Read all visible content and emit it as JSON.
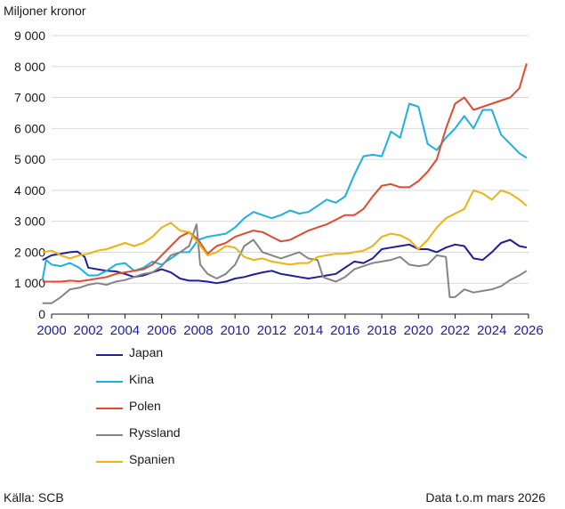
{
  "chart_data": {
    "type": "line",
    "title": "",
    "ylabel": "Miljoner kronor",
    "xlabel": "",
    "ylim": [
      0,
      9000
    ],
    "xlim": [
      2000,
      2026
    ],
    "y_ticks": [
      0,
      1000,
      2000,
      3000,
      4000,
      5000,
      6000,
      7000,
      8000,
      9000
    ],
    "y_tick_labels": [
      "0",
      "1 000",
      "2 000",
      "3 000",
      "4 000",
      "5 000",
      "6 000",
      "7 000",
      "8 000",
      "9 000"
    ],
    "x_ticks": [
      2000,
      2002,
      2004,
      2006,
      2008,
      2010,
      2012,
      2014,
      2016,
      2018,
      2020,
      2022,
      2024,
      2026
    ],
    "x_tick_labels": [
      "2000",
      "2002",
      "2004",
      "2006",
      "2008",
      "2010",
      "2012",
      "2014",
      "2016",
      "2018",
      "2020",
      "2022",
      "2024",
      "2026"
    ],
    "grid": "horizontal",
    "legend_position": "bottom-left",
    "series": [
      {
        "name": "Japan",
        "color": "#1e1e9e",
        "points": [
          [
            1999.5,
            1750
          ],
          [
            2000,
            1900
          ],
          [
            2000.5,
            1950
          ],
          [
            2001,
            2000
          ],
          [
            2001.4,
            2020
          ],
          [
            2001.8,
            1850
          ],
          [
            2002,
            1500
          ],
          [
            2002.5,
            1450
          ],
          [
            2003,
            1400
          ],
          [
            2003.5,
            1380
          ],
          [
            2004,
            1300
          ],
          [
            2004.5,
            1200
          ],
          [
            2005,
            1250
          ],
          [
            2005.5,
            1350
          ],
          [
            2006,
            1450
          ],
          [
            2006.5,
            1350
          ],
          [
            2007,
            1150
          ],
          [
            2007.5,
            1080
          ],
          [
            2008,
            1080
          ],
          [
            2008.5,
            1050
          ],
          [
            2009,
            1000
          ],
          [
            2009.5,
            1050
          ],
          [
            2010,
            1150
          ],
          [
            2010.5,
            1200
          ],
          [
            2011,
            1280
          ],
          [
            2011.5,
            1350
          ],
          [
            2012,
            1400
          ],
          [
            2012.5,
            1300
          ],
          [
            2013,
            1250
          ],
          [
            2013.5,
            1200
          ],
          [
            2014,
            1150
          ],
          [
            2014.5,
            1200
          ],
          [
            2015,
            1250
          ],
          [
            2015.5,
            1300
          ],
          [
            2016,
            1500
          ],
          [
            2016.5,
            1700
          ],
          [
            2017,
            1650
          ],
          [
            2017.5,
            1800
          ],
          [
            2018,
            2100
          ],
          [
            2018.5,
            2150
          ],
          [
            2019,
            2200
          ],
          [
            2019.5,
            2250
          ],
          [
            2020,
            2100
          ],
          [
            2020.5,
            2100
          ],
          [
            2021,
            2000
          ],
          [
            2021.5,
            2150
          ],
          [
            2022,
            2250
          ],
          [
            2022.5,
            2200
          ],
          [
            2023,
            1800
          ],
          [
            2023.5,
            1750
          ],
          [
            2024,
            2000
          ],
          [
            2024.5,
            2300
          ],
          [
            2025,
            2400
          ],
          [
            2025.5,
            2200
          ],
          [
            2025.9,
            2150
          ]
        ]
      },
      {
        "name": "Kina",
        "color": "#1cb1e0",
        "points": [
          [
            1999.5,
            1100
          ],
          [
            1999.7,
            1750
          ],
          [
            2000,
            1600
          ],
          [
            2000.5,
            1550
          ],
          [
            2001,
            1650
          ],
          [
            2001.5,
            1500
          ],
          [
            2002,
            1250
          ],
          [
            2002.5,
            1250
          ],
          [
            2003,
            1400
          ],
          [
            2003.5,
            1600
          ],
          [
            2004,
            1650
          ],
          [
            2004.5,
            1400
          ],
          [
            2005,
            1500
          ],
          [
            2005.5,
            1700
          ],
          [
            2006,
            1600
          ],
          [
            2006.5,
            1800
          ],
          [
            2007,
            2000
          ],
          [
            2007.5,
            2000
          ],
          [
            2008,
            2400
          ],
          [
            2008.5,
            2500
          ],
          [
            2009,
            2550
          ],
          [
            2009.5,
            2600
          ],
          [
            2010,
            2800
          ],
          [
            2010.5,
            3100
          ],
          [
            2011,
            3300
          ],
          [
            2011.5,
            3200
          ],
          [
            2012,
            3100
          ],
          [
            2012.5,
            3200
          ],
          [
            2013,
            3350
          ],
          [
            2013.5,
            3250
          ],
          [
            2014,
            3300
          ],
          [
            2014.5,
            3500
          ],
          [
            2015,
            3700
          ],
          [
            2015.5,
            3600
          ],
          [
            2016,
            3800
          ],
          [
            2016.5,
            4500
          ],
          [
            2017,
            5100
          ],
          [
            2017.5,
            5150
          ],
          [
            2018,
            5100
          ],
          [
            2018.5,
            5900
          ],
          [
            2019,
            5700
          ],
          [
            2019.5,
            6800
          ],
          [
            2020,
            6700
          ],
          [
            2020.5,
            5500
          ],
          [
            2021,
            5300
          ],
          [
            2021.5,
            5700
          ],
          [
            2022,
            6000
          ],
          [
            2022.5,
            6400
          ],
          [
            2023,
            6000
          ],
          [
            2023.5,
            6600
          ],
          [
            2024,
            6600
          ],
          [
            2024.5,
            5800
          ],
          [
            2025,
            5500
          ],
          [
            2025.5,
            5200
          ],
          [
            2025.9,
            5050
          ]
        ]
      },
      {
        "name": "Polen",
        "color": "#e14a30",
        "points": [
          [
            1999.5,
            1050
          ],
          [
            2000,
            1050
          ],
          [
            2000.5,
            1050
          ],
          [
            2001,
            1080
          ],
          [
            2001.5,
            1060
          ],
          [
            2002,
            1100
          ],
          [
            2002.5,
            1150
          ],
          [
            2003,
            1200
          ],
          [
            2003.5,
            1300
          ],
          [
            2004,
            1350
          ],
          [
            2004.5,
            1400
          ],
          [
            2005,
            1450
          ],
          [
            2005.5,
            1600
          ],
          [
            2006,
            1900
          ],
          [
            2006.5,
            2200
          ],
          [
            2007,
            2500
          ],
          [
            2007.5,
            2650
          ],
          [
            2008,
            2400
          ],
          [
            2008.5,
            1950
          ],
          [
            2009,
            2200
          ],
          [
            2009.5,
            2300
          ],
          [
            2010,
            2500
          ],
          [
            2010.5,
            2600
          ],
          [
            2011,
            2700
          ],
          [
            2011.5,
            2650
          ],
          [
            2012,
            2500
          ],
          [
            2012.5,
            2350
          ],
          [
            2013,
            2400
          ],
          [
            2013.5,
            2550
          ],
          [
            2014,
            2700
          ],
          [
            2014.5,
            2800
          ],
          [
            2015,
            2900
          ],
          [
            2015.5,
            3050
          ],
          [
            2016,
            3200
          ],
          [
            2016.5,
            3200
          ],
          [
            2017,
            3400
          ],
          [
            2017.5,
            3800
          ],
          [
            2018,
            4150
          ],
          [
            2018.5,
            4200
          ],
          [
            2019,
            4100
          ],
          [
            2019.5,
            4100
          ],
          [
            2020,
            4300
          ],
          [
            2020.5,
            4600
          ],
          [
            2021,
            5000
          ],
          [
            2021.5,
            6000
          ],
          [
            2022,
            6800
          ],
          [
            2022.5,
            7000
          ],
          [
            2023,
            6600
          ],
          [
            2023.5,
            6700
          ],
          [
            2024,
            6800
          ],
          [
            2024.5,
            6900
          ],
          [
            2025,
            7000
          ],
          [
            2025.5,
            7300
          ],
          [
            2025.9,
            8100
          ]
        ]
      },
      {
        "name": "Ryssland",
        "color": "#858585",
        "points": [
          [
            1999.5,
            350
          ],
          [
            2000,
            350
          ],
          [
            2000.5,
            550
          ],
          [
            2001,
            800
          ],
          [
            2001.5,
            850
          ],
          [
            2002,
            950
          ],
          [
            2002.5,
            1000
          ],
          [
            2003,
            950
          ],
          [
            2003.5,
            1050
          ],
          [
            2004,
            1100
          ],
          [
            2004.5,
            1200
          ],
          [
            2005,
            1300
          ],
          [
            2005.5,
            1350
          ],
          [
            2006,
            1550
          ],
          [
            2006.5,
            1900
          ],
          [
            2007,
            2000
          ],
          [
            2007.5,
            2200
          ],
          [
            2007.9,
            2900
          ],
          [
            2008.1,
            1600
          ],
          [
            2008.5,
            1300
          ],
          [
            2009,
            1150
          ],
          [
            2009.5,
            1300
          ],
          [
            2010,
            1600
          ],
          [
            2010.5,
            2200
          ],
          [
            2011,
            2400
          ],
          [
            2011.5,
            2000
          ],
          [
            2012,
            1900
          ],
          [
            2012.5,
            1800
          ],
          [
            2013,
            1900
          ],
          [
            2013.5,
            2000
          ],
          [
            2014,
            1800
          ],
          [
            2014.5,
            1750
          ],
          [
            2014.8,
            1200
          ],
          [
            2015,
            1150
          ],
          [
            2015.5,
            1050
          ],
          [
            2016,
            1200
          ],
          [
            2016.5,
            1450
          ],
          [
            2017,
            1550
          ],
          [
            2017.5,
            1650
          ],
          [
            2018,
            1700
          ],
          [
            2018.5,
            1750
          ],
          [
            2019,
            1850
          ],
          [
            2019.5,
            1600
          ],
          [
            2020,
            1550
          ],
          [
            2020.5,
            1600
          ],
          [
            2021,
            1900
          ],
          [
            2021.5,
            1850
          ],
          [
            2021.7,
            550
          ],
          [
            2022,
            550
          ],
          [
            2022.5,
            800
          ],
          [
            2023,
            700
          ],
          [
            2023.5,
            750
          ],
          [
            2024,
            800
          ],
          [
            2024.5,
            900
          ],
          [
            2025,
            1100
          ],
          [
            2025.5,
            1250
          ],
          [
            2025.9,
            1400
          ]
        ]
      },
      {
        "name": "Spanien",
        "color": "#f2b10c",
        "points": [
          [
            1999.5,
            2000
          ],
          [
            2000,
            2050
          ],
          [
            2000.5,
            1900
          ],
          [
            2001,
            1800
          ],
          [
            2001.5,
            1900
          ],
          [
            2002,
            1950
          ],
          [
            2002.5,
            2050
          ],
          [
            2003,
            2100
          ],
          [
            2003.5,
            2200
          ],
          [
            2004,
            2300
          ],
          [
            2004.5,
            2200
          ],
          [
            2005,
            2300
          ],
          [
            2005.5,
            2500
          ],
          [
            2006,
            2800
          ],
          [
            2006.5,
            2950
          ],
          [
            2007,
            2700
          ],
          [
            2007.5,
            2650
          ],
          [
            2008,
            2300
          ],
          [
            2008.5,
            1900
          ],
          [
            2009,
            2000
          ],
          [
            2009.5,
            2200
          ],
          [
            2010,
            2150
          ],
          [
            2010.5,
            1850
          ],
          [
            2011,
            1750
          ],
          [
            2011.5,
            1800
          ],
          [
            2012,
            1700
          ],
          [
            2012.5,
            1650
          ],
          [
            2013,
            1600
          ],
          [
            2013.5,
            1650
          ],
          [
            2014,
            1650
          ],
          [
            2014.5,
            1850
          ],
          [
            2015,
            1900
          ],
          [
            2015.5,
            1950
          ],
          [
            2016,
            1950
          ],
          [
            2016.5,
            2000
          ],
          [
            2017,
            2050
          ],
          [
            2017.5,
            2200
          ],
          [
            2018,
            2500
          ],
          [
            2018.5,
            2600
          ],
          [
            2019,
            2550
          ],
          [
            2019.5,
            2400
          ],
          [
            2020,
            2100
          ],
          [
            2020.5,
            2400
          ],
          [
            2021,
            2800
          ],
          [
            2021.5,
            3100
          ],
          [
            2022,
            3250
          ],
          [
            2022.5,
            3400
          ],
          [
            2023,
            4000
          ],
          [
            2023.5,
            3900
          ],
          [
            2024,
            3700
          ],
          [
            2024.5,
            4000
          ],
          [
            2025,
            3900
          ],
          [
            2025.5,
            3700
          ],
          [
            2025.9,
            3500
          ]
        ]
      }
    ]
  },
  "source": "Källa: SCB",
  "data_note": "Data t.o.m mars 2026"
}
